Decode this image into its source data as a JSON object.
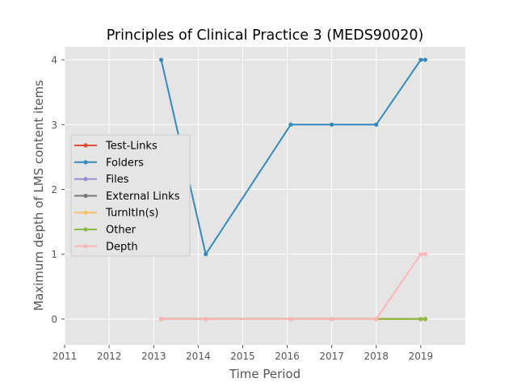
{
  "chart_data": {
    "type": "line",
    "title": "Principles of Clinical Practice 3 (MEDS90020)",
    "xlabel": "Time Period",
    "ylabel": "Maximum depth of LMS content items",
    "xlim": [
      2011,
      2020
    ],
    "ylim": [
      -0.4,
      4.2
    ],
    "xticks": [
      "2011",
      "2012",
      "2013",
      "2014",
      "2015",
      "2016",
      "2017",
      "2018",
      "2019"
    ],
    "yticks": [
      "0",
      "1",
      "2",
      "3",
      "4"
    ],
    "grid": true,
    "legend_position": "center-left",
    "x": [
      2013.17,
      2014.17,
      2016.08,
      2017.0,
      2018.0,
      2019.0,
      2019.1
    ],
    "series": [
      {
        "name": "Test-Links",
        "color": "#E24A33",
        "values": [
          0,
          0,
          0,
          0,
          0,
          0,
          0
        ]
      },
      {
        "name": "Folders",
        "color": "#348ABD",
        "values": [
          4,
          1,
          3,
          3,
          3,
          4,
          4
        ]
      },
      {
        "name": "Files",
        "color": "#988ED5",
        "values": [
          0,
          0,
          0,
          0,
          0,
          0,
          0
        ]
      },
      {
        "name": "External Links",
        "color": "#777777",
        "values": [
          0,
          0,
          0,
          0,
          0,
          0,
          0
        ]
      },
      {
        "name": "TurnItIn(s)",
        "color": "#FBC15E",
        "values": [
          0,
          0,
          0,
          0,
          0,
          0,
          0
        ]
      },
      {
        "name": "Other",
        "color": "#8EBA42",
        "values": [
          0,
          0,
          0,
          0,
          0,
          0,
          0
        ]
      },
      {
        "name": "Depth",
        "color": "#FFB5B8",
        "values": [
          0,
          0,
          0,
          0,
          0,
          1,
          1
        ]
      }
    ]
  }
}
